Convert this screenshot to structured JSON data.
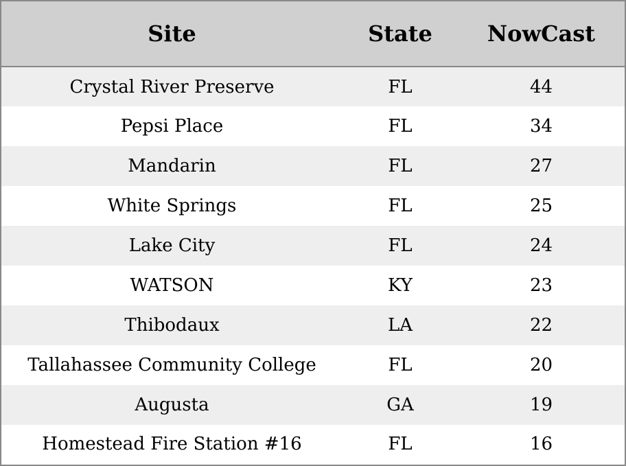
{
  "table": {
    "headers": {
      "site": "Site",
      "state": "State",
      "nowcast": "NowCast"
    },
    "rows": [
      {
        "site": "Crystal River Preserve",
        "state": "FL",
        "nowcast": "44"
      },
      {
        "site": "Pepsi Place",
        "state": "FL",
        "nowcast": "34"
      },
      {
        "site": "Mandarin",
        "state": "FL",
        "nowcast": "27"
      },
      {
        "site": "White Springs",
        "state": "FL",
        "nowcast": "25"
      },
      {
        "site": "Lake City",
        "state": "FL",
        "nowcast": "24"
      },
      {
        "site": "WATSON",
        "state": "KY",
        "nowcast": "23"
      },
      {
        "site": "Thibodaux",
        "state": "LA",
        "nowcast": "22"
      },
      {
        "site": "Tallahassee Community College",
        "state": "FL",
        "nowcast": "20"
      },
      {
        "site": "Augusta",
        "state": "GA",
        "nowcast": "19"
      },
      {
        "site": "Homestead Fire Station #16",
        "state": "FL",
        "nowcast": "16"
      }
    ]
  },
  "colors": {
    "header_bg": "#d0d0d0",
    "row_alt_bg": "#eeeeee",
    "row_bg": "#ffffff",
    "border": "#888888"
  }
}
